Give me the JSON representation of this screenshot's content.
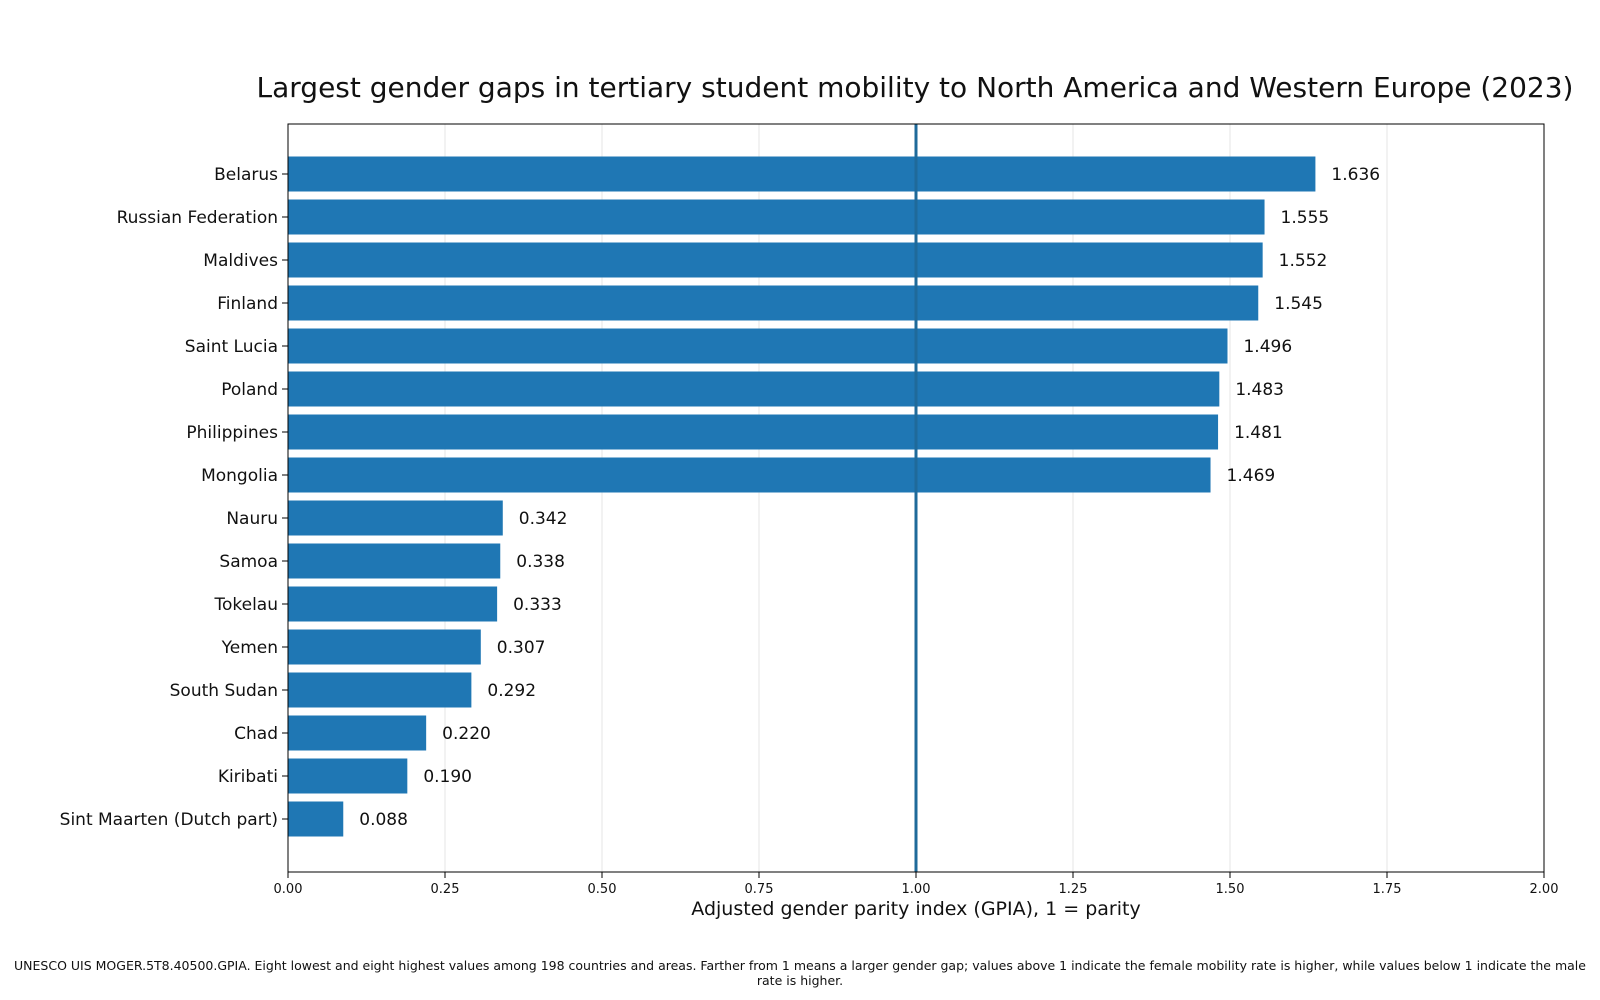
{
  "chart_data": {
    "type": "bar",
    "orientation": "horizontal",
    "title": "Largest gender gaps in tertiary student mobility to North America and Western Europe (2023)",
    "xlabel": "Adjusted gender parity index (GPIA), 1 = parity",
    "ylabel": "",
    "xlim": [
      0,
      2
    ],
    "xticks": [
      "0.00",
      "0.25",
      "0.50",
      "0.75",
      "1.00",
      "1.25",
      "1.50",
      "1.75",
      "2.00"
    ],
    "xtick_values": [
      0,
      0.25,
      0.5,
      0.75,
      1.0,
      1.25,
      1.5,
      1.75,
      2.0
    ],
    "reference_line": 1.0,
    "grid": "vertical",
    "bar_color": "#1f77b4",
    "reference_line_color": "#1f6a9a",
    "categories": [
      "Belarus",
      "Russian Federation",
      "Maldives",
      "Finland",
      "Saint Lucia",
      "Poland",
      "Philippines",
      "Mongolia",
      "Nauru",
      "Samoa",
      "Tokelau",
      "Yemen",
      "South Sudan",
      "Chad",
      "Kiribati",
      "Sint Maarten (Dutch part)"
    ],
    "values": [
      1.636,
      1.555,
      1.552,
      1.545,
      1.496,
      1.483,
      1.481,
      1.469,
      0.342,
      0.338,
      0.333,
      0.307,
      0.292,
      0.22,
      0.19,
      0.088
    ],
    "value_labels": [
      "1.636",
      "1.555",
      "1.552",
      "1.545",
      "1.496",
      "1.483",
      "1.481",
      "1.469",
      "0.342",
      "0.338",
      "0.333",
      "0.307",
      "0.292",
      "0.220",
      "0.190",
      "0.088"
    ]
  },
  "footnote": "UNESCO UIS MOGER.5T8.40500.GPIA. Eight lowest and eight highest values among 198 countries and areas. Farther from 1 means a larger gender gap; values above 1 indicate the female mobility rate is higher, while values below 1 indicate the male rate is higher."
}
